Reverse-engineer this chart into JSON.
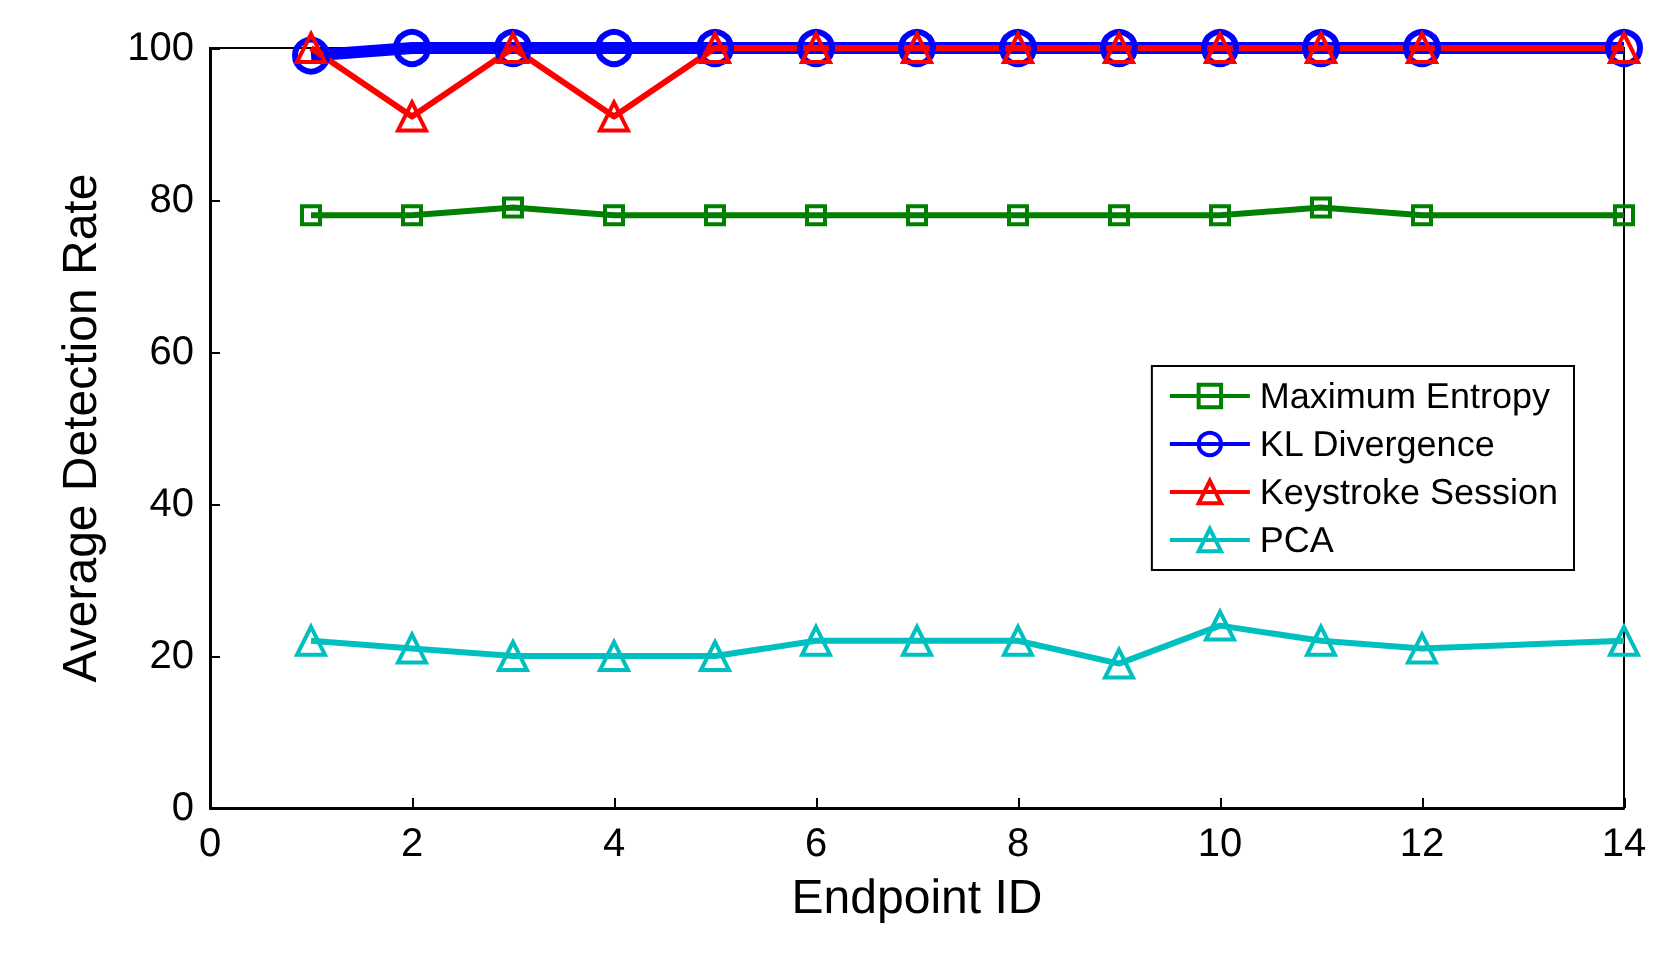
{
  "chart_data": {
    "type": "line",
    "xlabel": "Endpoint ID",
    "ylabel": "Average Detection Rate",
    "x": [
      1,
      2,
      3,
      4,
      5,
      6,
      7,
      8,
      9,
      10,
      11,
      12,
      14
    ],
    "xlim": [
      0,
      14
    ],
    "xticks": [
      0,
      2,
      4,
      6,
      8,
      10,
      12,
      14
    ],
    "ylim": [
      0,
      100
    ],
    "yticks": [
      0,
      20,
      40,
      60,
      80,
      100
    ],
    "grid": false,
    "legend": "right",
    "series": [
      {
        "name": "Maximum Entropy",
        "color": "#008000",
        "marker": "square",
        "values": [
          78,
          78,
          79,
          78,
          78,
          78,
          78,
          78,
          78,
          78,
          79,
          78,
          78
        ]
      },
      {
        "name": "KL Divergence",
        "color": "#0000ff",
        "marker": "circle",
        "values": [
          99,
          100,
          100,
          100,
          100,
          100,
          100,
          100,
          100,
          100,
          100,
          100,
          100
        ]
      },
      {
        "name": "Keystroke Session",
        "color": "#ff0000",
        "marker": "triangle",
        "values": [
          100,
          91,
          100,
          91,
          100,
          100,
          100,
          100,
          100,
          100,
          100,
          100,
          100
        ]
      },
      {
        "name": "PCA",
        "color": "#00bfbf",
        "marker": "triangle",
        "values": [
          22,
          21,
          20,
          20,
          20,
          22,
          22,
          22,
          19,
          24,
          22,
          21,
          22
        ]
      }
    ]
  }
}
